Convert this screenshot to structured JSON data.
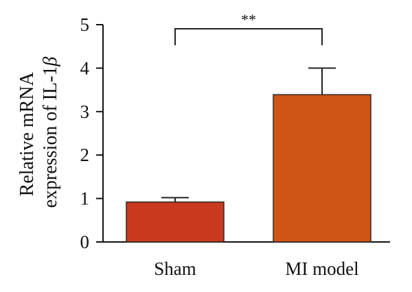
{
  "chart_data": {
    "type": "bar",
    "categories": [
      "Sham",
      "MI model"
    ],
    "values": [
      0.92,
      3.39
    ],
    "error_upper": [
      1.02,
      4.0
    ],
    "bar_colors": [
      "#c9391d",
      "#cf5516"
    ],
    "ylabel_line1": "Relative mRNA",
    "ylabel_line2": "expression of IL-1",
    "ylabel_symbol": "β",
    "ylim": [
      0,
      5
    ],
    "yticks": [
      "0",
      "1",
      "2",
      "3",
      "4",
      "5"
    ],
    "significance": {
      "between": [
        0,
        1
      ],
      "label": "**"
    },
    "grid": false
  }
}
